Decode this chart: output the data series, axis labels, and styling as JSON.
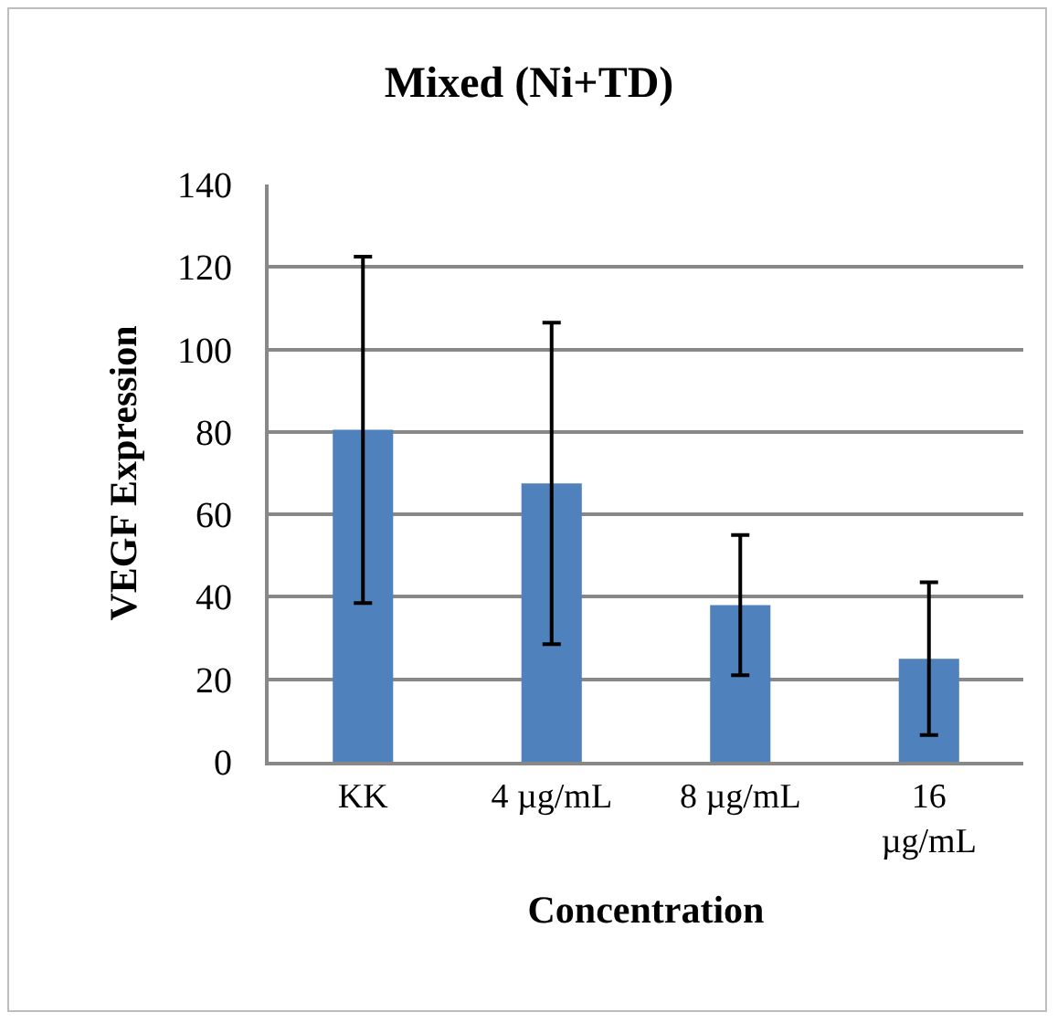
{
  "chart_data": {
    "type": "bar",
    "title": "Mixed (Ni+TD)",
    "xlabel": "Concentration",
    "ylabel": "VEGF Expression",
    "categories": [
      "KK",
      "4 µg/mL",
      "8 µg/mL",
      "16 µg/mL"
    ],
    "values": [
      80.5,
      67.5,
      38,
      25
    ],
    "errors": [
      42,
      39,
      17,
      18.5
    ],
    "color": "#4f81bd",
    "ylim": [
      0,
      140
    ],
    "yticks": [
      0,
      20,
      40,
      60,
      80,
      100,
      120,
      140
    ],
    "grid": "y",
    "legend": false
  }
}
